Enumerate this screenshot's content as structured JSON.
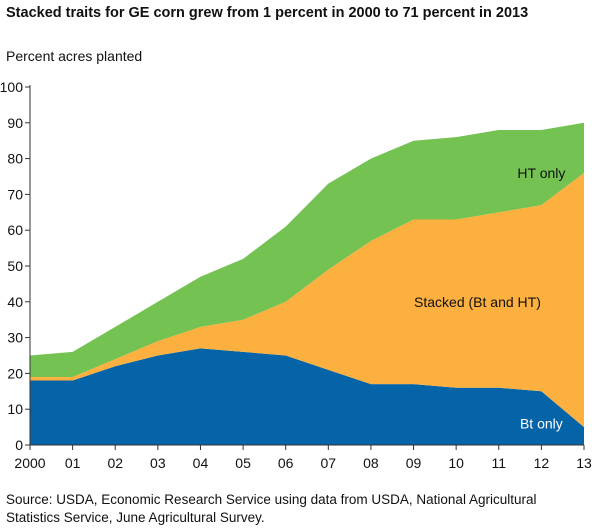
{
  "page": {
    "title": "Stacked traits for GE corn grew from 1 percent in 2000 to 71 percent in 2013",
    "source": "Source: USDA, Economic Research Service using data from USDA, National Agricultural Statistics Service, June Agricultural Survey."
  },
  "chart_data": {
    "type": "area",
    "stacked": true,
    "title": "Stacked traits for GE corn grew from 1 percent in 2000 to 71 percent in 2013",
    "ylabel": "Percent acres planted",
    "xlabel": "",
    "categories": [
      "2000",
      "01",
      "02",
      "03",
      "04",
      "05",
      "06",
      "07",
      "08",
      "09",
      "10",
      "11",
      "12",
      "13"
    ],
    "ylim": [
      0,
      100
    ],
    "yticks": [
      0,
      10,
      20,
      30,
      40,
      50,
      60,
      70,
      80,
      90,
      100
    ],
    "grid": false,
    "series": [
      {
        "name": "Bt only",
        "color": "#0563a8",
        "values": [
          18,
          18,
          22,
          25,
          27,
          26,
          25,
          21,
          17,
          17,
          16,
          16,
          15,
          5
        ]
      },
      {
        "name": "Stacked (Bt and HT)",
        "color": "#fbb040",
        "values": [
          1,
          1,
          2,
          4,
          6,
          9,
          15,
          28,
          40,
          46,
          47,
          49,
          52,
          71
        ]
      },
      {
        "name": "HT only",
        "color": "#73c252",
        "values": [
          6,
          7,
          9,
          11,
          14,
          17,
          21,
          24,
          23,
          22,
          23,
          23,
          21,
          14
        ]
      }
    ],
    "annotations": [
      {
        "text": "HT only",
        "x": "12",
        "y": 76,
        "color": "#111111"
      },
      {
        "text": "Stacked (Bt and HT)",
        "x": "10.5",
        "y": 40,
        "color": "#111111"
      },
      {
        "text": "Bt only",
        "x": "12",
        "y": 6,
        "color": "#ffffff"
      }
    ]
  }
}
